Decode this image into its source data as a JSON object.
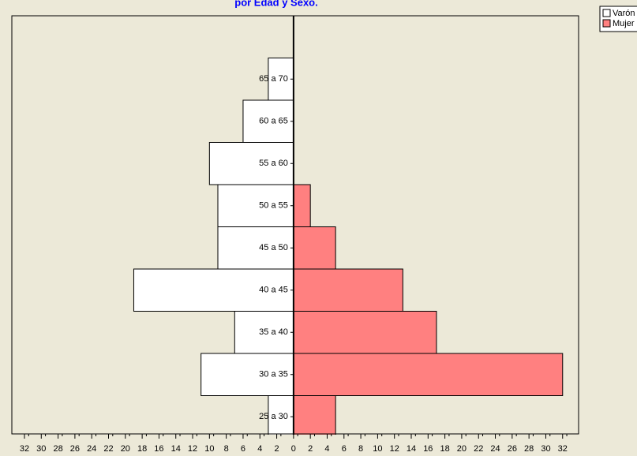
{
  "chart_data": {
    "type": "pyramid",
    "title": "por Edad y Sexo.",
    "categories": [
      "25 a 30",
      "30  a 35",
      "35 a 40",
      "40 a 45",
      "45 a 50",
      "50 a 55",
      "55 a 60",
      "60 a 65",
      "65 a 70"
    ],
    "series": [
      {
        "name": "Varón",
        "color": "#ffffff",
        "values": [
          -3,
          -11,
          -7,
          -19,
          -9,
          -9,
          -10,
          -6,
          -3
        ]
      },
      {
        "name": "Mujer",
        "color": "#ff8080",
        "values": [
          5,
          32,
          17,
          13,
          5,
          2,
          0,
          0,
          0
        ]
      }
    ],
    "xlim": [
      -33.5,
      33.9
    ],
    "xticks": [
      {
        "value": -32,
        "label": "32"
      },
      {
        "value": -30,
        "label": "30"
      },
      {
        "value": -28,
        "label": "28"
      },
      {
        "value": -26,
        "label": "26"
      },
      {
        "value": -24,
        "label": "24"
      },
      {
        "value": -22,
        "label": "22"
      },
      {
        "value": -20,
        "label": "20"
      },
      {
        "value": -18,
        "label": "18"
      },
      {
        "value": -16,
        "label": "16"
      },
      {
        "value": -14,
        "label": "14"
      },
      {
        "value": -12,
        "label": "12"
      },
      {
        "value": -10,
        "label": "10"
      },
      {
        "value": -8,
        "label": "8"
      },
      {
        "value": -6,
        "label": "6"
      },
      {
        "value": -4,
        "label": "4"
      },
      {
        "value": -2,
        "label": "2"
      },
      0,
      2,
      4,
      6,
      8,
      10,
      12,
      14,
      16,
      18,
      20,
      22,
      24,
      26,
      28,
      30,
      32
    ]
  }
}
